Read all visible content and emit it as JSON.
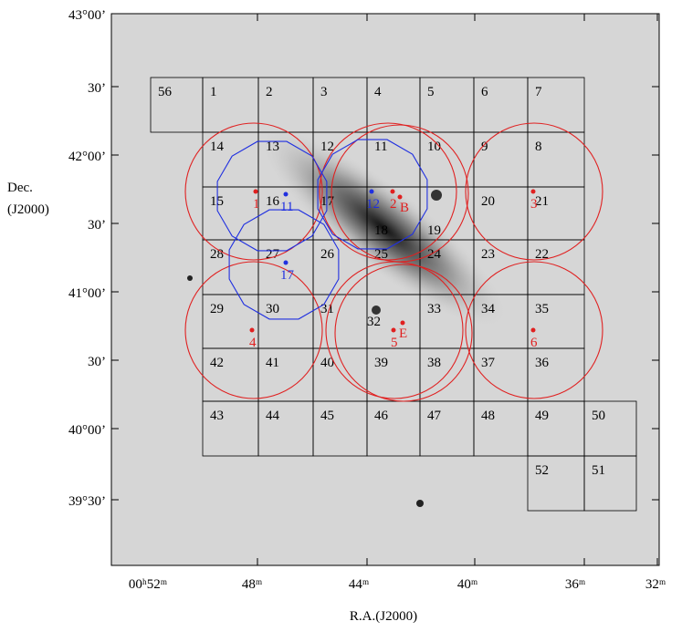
{
  "axes": {
    "y_label": [
      "Dec.",
      "(J2000)"
    ],
    "x_label": "R.A.(J2000)",
    "y_ticks": [
      "43°00’",
      "30’",
      "42°00’",
      "30’",
      "41°00’",
      "30’",
      "40°00’",
      "39°30’"
    ],
    "x_ticks": [
      "00ʰ52ᵐ",
      "48ᵐ",
      "44ᵐ",
      "40ᵐ",
      "36ᵐ",
      "32ᵐ"
    ]
  },
  "fields": [
    [
      "56",
      "1",
      "2",
      "3",
      "4",
      "5",
      "6",
      "7"
    ],
    [
      "14",
      "13",
      "12",
      "11",
      "10",
      "9",
      "8"
    ],
    [
      "15",
      "16",
      "17",
      "18",
      "19",
      "20",
      "21"
    ],
    [
      "28",
      "27",
      "26",
      "25",
      "24",
      "23",
      "22"
    ],
    [
      "29",
      "30",
      "31",
      "32",
      "33",
      "34",
      "35"
    ],
    [
      "42",
      "41",
      "40",
      "39",
      "38",
      "37",
      "36"
    ],
    [
      "43",
      "44",
      "45",
      "46",
      "47",
      "48",
      "49",
      "50"
    ],
    [
      "52",
      "51"
    ]
  ],
  "red_targets": [
    "1",
    "2",
    "B",
    "3",
    "4",
    "5",
    "E",
    "6"
  ],
  "blue_targets": [
    "11",
    "12",
    "17"
  ]
}
